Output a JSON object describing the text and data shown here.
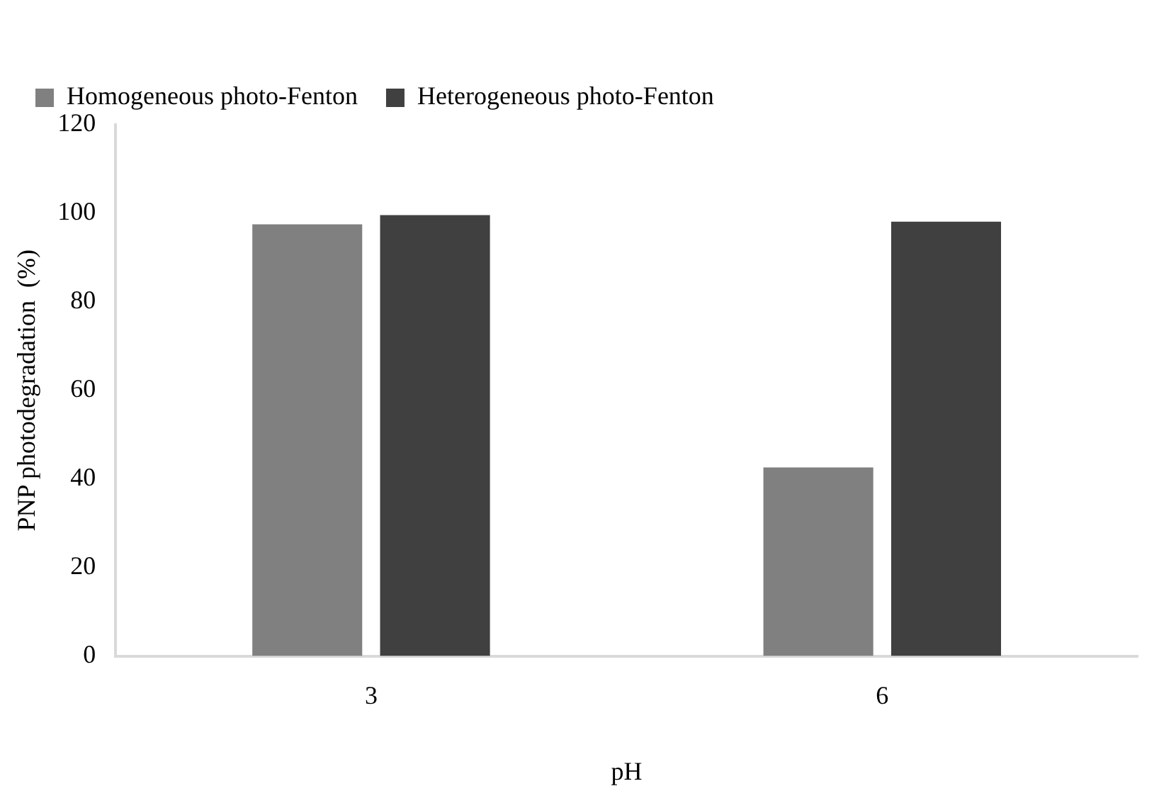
{
  "chart_data": {
    "type": "bar",
    "xlabel": "pH",
    "ylabel": "PNP photodegradation  (%)",
    "categories": [
      "3",
      "6"
    ],
    "series": [
      {
        "name": "Homogeneous photo-Fenton",
        "color": "#808080",
        "values": [
          97.5,
          42.6
        ]
      },
      {
        "name": "Heterogeneous photo-Fenton",
        "color": "#404040",
        "values": [
          99.6,
          98.1
        ]
      }
    ],
    "ylim": [
      0,
      120
    ],
    "yticks": [
      0,
      20,
      40,
      60,
      80,
      100,
      120
    ],
    "grid": false,
    "legend": "top left"
  }
}
